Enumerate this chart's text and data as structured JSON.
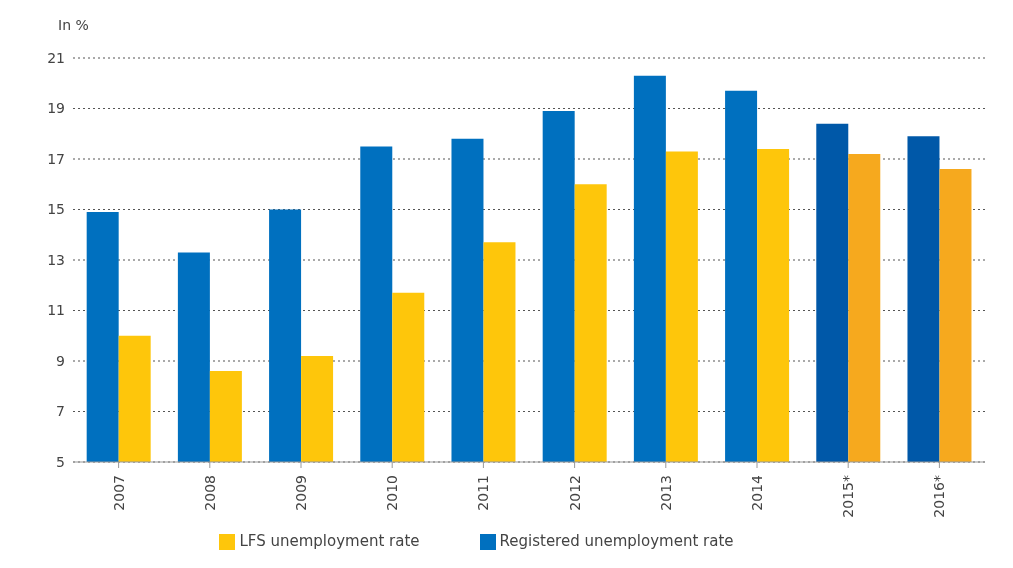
{
  "chart_data": {
    "type": "bar",
    "ylabel": "In %",
    "categories": [
      "2007",
      "2008",
      "2009",
      "2010",
      "2011",
      "2012",
      "2013",
      "2014",
      "2015*",
      "2016*"
    ],
    "series": [
      {
        "name": "Registered unemployment rate",
        "color": "#0070bf",
        "colors": [
          "#0070bf",
          "#0070bf",
          "#0070bf",
          "#0070bf",
          "#0070bf",
          "#0070bf",
          "#0070bf",
          "#0070bf",
          "#0058a8",
          "#0058a8"
        ],
        "values": [
          14.9,
          13.3,
          15.0,
          17.5,
          17.8,
          18.9,
          20.3,
          19.7,
          18.4,
          17.9
        ]
      },
      {
        "name": "LFS unemployment rate",
        "color": "#fec60b",
        "colors": [
          "#fec60b",
          "#fec60b",
          "#fec60b",
          "#fec60b",
          "#fec60b",
          "#fec60b",
          "#fec60b",
          "#fec60b",
          "#f6a91e",
          "#f6a91e"
        ],
        "values": [
          10.0,
          8.6,
          9.2,
          11.7,
          13.7,
          16.0,
          17.3,
          17.4,
          17.2,
          16.6
        ]
      }
    ],
    "ylim": [
      5,
      21
    ],
    "yticks": [
      5,
      7,
      9,
      11,
      13,
      15,
      17,
      19,
      21
    ],
    "grid": "y",
    "legend": "bottom"
  }
}
